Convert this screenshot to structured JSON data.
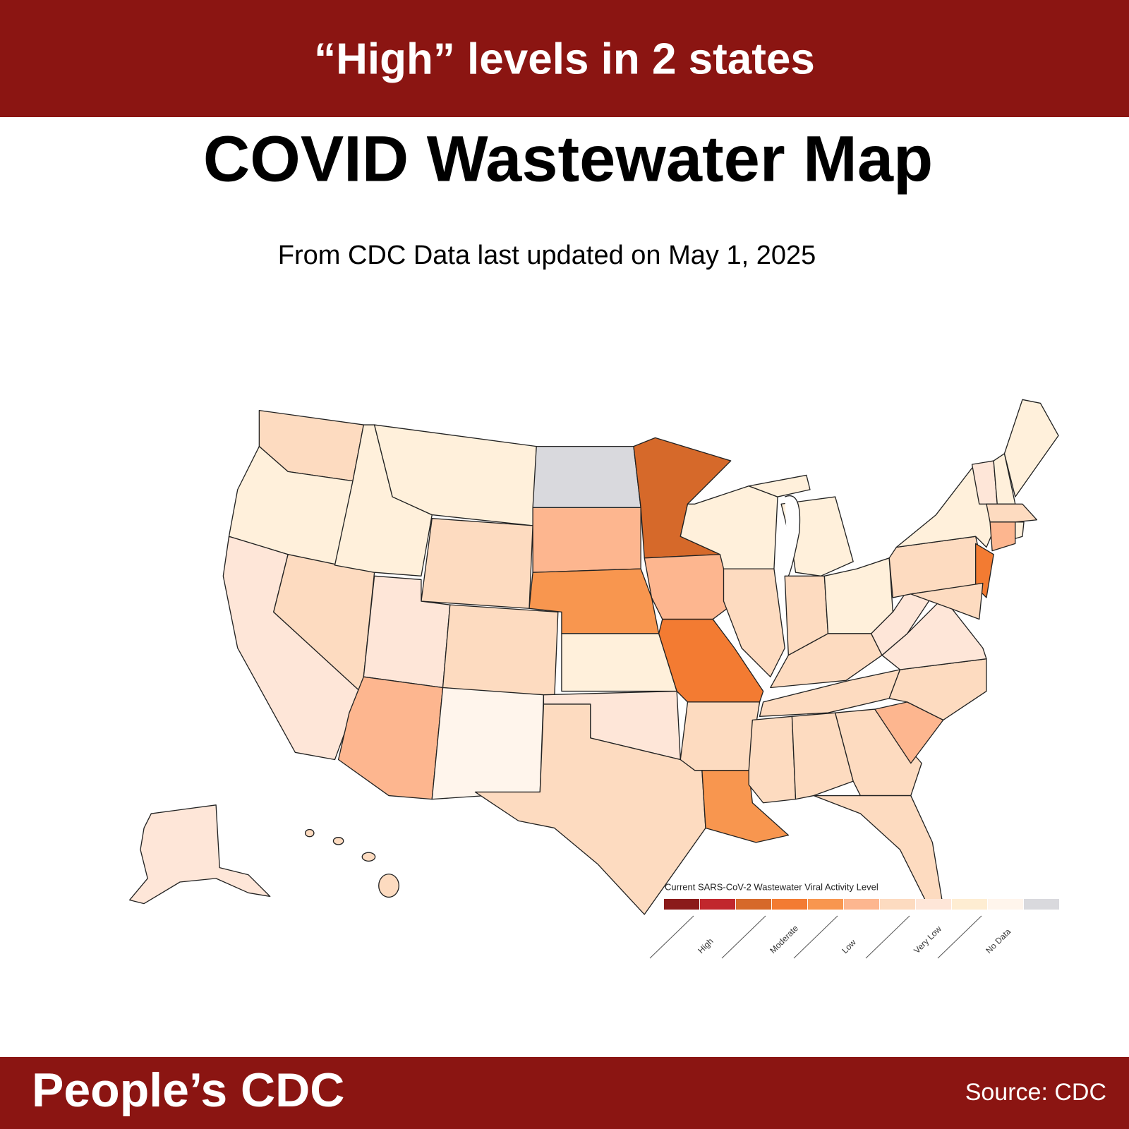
{
  "header": {
    "headline": "“High” levels in 2 states"
  },
  "title": "COVID Wastewater Map",
  "subtitle": "From CDC Data last updated on May 1, 2025",
  "legend": {
    "title": "Current SARS-CoV-2 Wastewater Viral Activity Level",
    "colors": [
      "#8b1a1a",
      "#c1272d",
      "#d6692a",
      "#f37b32",
      "#f8964f",
      "#fdb68f",
      "#fddbc0",
      "#fee6d8",
      "#feedd2",
      "#fff5ec",
      "#d9d9dd"
    ],
    "labels": [
      "High",
      "Moderate",
      "Low",
      "Very Low",
      "No Data"
    ]
  },
  "footer": {
    "brand": "People’s CDC",
    "source": "Source: CDC"
  }
}
